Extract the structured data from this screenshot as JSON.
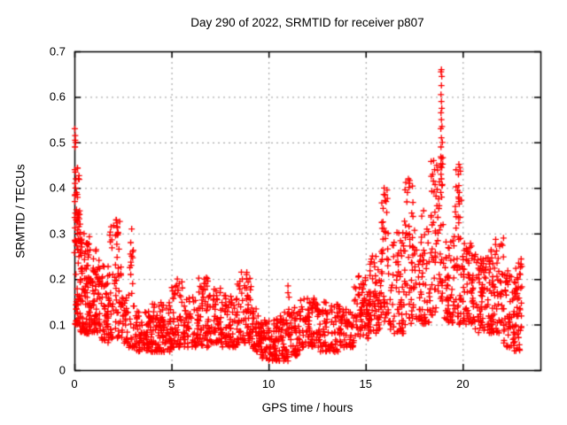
{
  "chart_data": {
    "type": "scatter",
    "title": "Day 290 of 2022, SRMTID for receiver p807",
    "xlabel": "GPS time / hours",
    "ylabel": "SRMTID / TECUs",
    "xlim": [
      0,
      24
    ],
    "ylim": [
      0,
      0.7
    ],
    "xtick_values": [
      0,
      5,
      10,
      15,
      20
    ],
    "xtick_labels": [
      "0",
      "5",
      "10",
      "15",
      "20"
    ],
    "ytick_values": [
      0,
      0.1,
      0.2,
      0.3,
      0.4,
      0.5,
      0.6,
      0.7
    ],
    "ytick_labels": [
      "0",
      "0.1",
      "0.2",
      "0.3",
      "0.4",
      "0.5",
      "0.6",
      "0.7"
    ],
    "grid": true,
    "legend": "none",
    "marker": {
      "shape": "plus",
      "color": "#ff0000",
      "size": 7,
      "stroke": 1.3
    },
    "grid_color": "#9a9a9a",
    "border_color": "#000000",
    "background_color": "#ffffff",
    "seed": 12345,
    "bands": [
      {
        "x0": 0.0,
        "x1": 0.3,
        "n": 55,
        "lo": 0.1,
        "hi": 0.36,
        "pow": 1.3
      },
      {
        "x0": 0.0,
        "x1": 0.25,
        "n": 16,
        "lo": 0.28,
        "hi": 0.45,
        "pow": 1.0
      },
      {
        "x0": 0.3,
        "x1": 0.8,
        "n": 95,
        "lo": 0.08,
        "hi": 0.3,
        "pow": 1.5
      },
      {
        "x0": 0.8,
        "x1": 1.3,
        "n": 70,
        "lo": 0.08,
        "hi": 0.27,
        "pow": 1.5
      },
      {
        "x0": 1.3,
        "x1": 1.8,
        "n": 55,
        "lo": 0.06,
        "hi": 0.23,
        "pow": 1.4
      },
      {
        "x0": 1.8,
        "x1": 2.45,
        "n": 65,
        "lo": 0.07,
        "hi": 0.33,
        "pow": 1.5
      },
      {
        "x0": 2.45,
        "x1": 2.8,
        "n": 30,
        "lo": 0.05,
        "hi": 0.16,
        "pow": 1.3
      },
      {
        "x0": 2.8,
        "x1": 3.1,
        "n": 22,
        "lo": 0.05,
        "hi": 0.28,
        "pow": 2.2
      },
      {
        "x0": 3.1,
        "x1": 4.0,
        "n": 85,
        "lo": 0.04,
        "hi": 0.13,
        "pow": 1.2
      },
      {
        "x0": 4.0,
        "x1": 5.0,
        "n": 95,
        "lo": 0.04,
        "hi": 0.15,
        "pow": 1.3
      },
      {
        "x0": 5.0,
        "x1": 5.6,
        "n": 55,
        "lo": 0.05,
        "hi": 0.2,
        "pow": 1.6
      },
      {
        "x0": 5.6,
        "x1": 6.4,
        "n": 65,
        "lo": 0.05,
        "hi": 0.16,
        "pow": 1.3
      },
      {
        "x0": 6.4,
        "x1": 7.0,
        "n": 60,
        "lo": 0.05,
        "hi": 0.21,
        "pow": 1.5
      },
      {
        "x0": 7.0,
        "x1": 7.6,
        "n": 55,
        "lo": 0.06,
        "hi": 0.18,
        "pow": 1.4
      },
      {
        "x0": 7.6,
        "x1": 8.4,
        "n": 65,
        "lo": 0.05,
        "hi": 0.17,
        "pow": 1.3
      },
      {
        "x0": 8.4,
        "x1": 9.1,
        "n": 65,
        "lo": 0.06,
        "hi": 0.22,
        "pow": 1.5
      },
      {
        "x0": 9.1,
        "x1": 9.6,
        "n": 45,
        "lo": 0.04,
        "hi": 0.14,
        "pow": 1.3
      },
      {
        "x0": 9.6,
        "x1": 10.4,
        "n": 75,
        "lo": 0.02,
        "hi": 0.11,
        "pow": 1.2
      },
      {
        "x0": 10.4,
        "x1": 11.0,
        "n": 60,
        "lo": 0.02,
        "hi": 0.13,
        "pow": 1.4
      },
      {
        "x0": 11.0,
        "x1": 11.6,
        "n": 55,
        "lo": 0.03,
        "hi": 0.14,
        "pow": 1.4
      },
      {
        "x0": 11.6,
        "x1": 12.6,
        "n": 85,
        "lo": 0.05,
        "hi": 0.16,
        "pow": 1.3
      },
      {
        "x0": 12.6,
        "x1": 13.6,
        "n": 75,
        "lo": 0.04,
        "hi": 0.15,
        "pow": 1.4
      },
      {
        "x0": 13.6,
        "x1": 14.4,
        "n": 60,
        "lo": 0.05,
        "hi": 0.14,
        "pow": 1.3
      },
      {
        "x0": 14.4,
        "x1": 15.2,
        "n": 75,
        "lo": 0.07,
        "hi": 0.21,
        "pow": 1.3
      },
      {
        "x0": 15.2,
        "x1": 15.8,
        "n": 60,
        "lo": 0.08,
        "hi": 0.26,
        "pow": 1.4
      },
      {
        "x0": 15.8,
        "x1": 16.2,
        "n": 45,
        "lo": 0.1,
        "hi": 0.4,
        "pow": 1.5
      },
      {
        "x0": 16.2,
        "x1": 17.0,
        "n": 65,
        "lo": 0.08,
        "hi": 0.31,
        "pow": 1.5
      },
      {
        "x0": 17.0,
        "x1": 17.5,
        "n": 50,
        "lo": 0.1,
        "hi": 0.42,
        "pow": 1.5
      },
      {
        "x0": 17.5,
        "x1": 18.3,
        "n": 65,
        "lo": 0.1,
        "hi": 0.35,
        "pow": 1.4
      },
      {
        "x0": 18.3,
        "x1": 18.75,
        "n": 45,
        "lo": 0.12,
        "hi": 0.46,
        "pow": 1.4
      },
      {
        "x0": 18.75,
        "x1": 19.05,
        "n": 28,
        "lo": 0.15,
        "hi": 0.47,
        "pow": 1.2
      },
      {
        "x0": 19.05,
        "x1": 19.6,
        "n": 55,
        "lo": 0.1,
        "hi": 0.3,
        "pow": 1.3
      },
      {
        "x0": 19.6,
        "x1": 19.95,
        "n": 38,
        "lo": 0.1,
        "hi": 0.44,
        "pow": 1.5
      },
      {
        "x0": 19.95,
        "x1": 20.6,
        "n": 65,
        "lo": 0.1,
        "hi": 0.28,
        "pow": 1.3
      },
      {
        "x0": 20.6,
        "x1": 21.4,
        "n": 75,
        "lo": 0.08,
        "hi": 0.26,
        "pow": 1.2
      },
      {
        "x0": 21.4,
        "x1": 22.1,
        "n": 70,
        "lo": 0.08,
        "hi": 0.29,
        "pow": 1.3
      },
      {
        "x0": 22.1,
        "x1": 22.65,
        "n": 55,
        "lo": 0.05,
        "hi": 0.22,
        "pow": 1.2
      },
      {
        "x0": 22.65,
        "x1": 23.05,
        "n": 50,
        "lo": 0.04,
        "hi": 0.25,
        "pow": 1.2
      }
    ],
    "feature_points": [
      [
        0.02,
        0.53
      ],
      [
        0.04,
        0.515
      ],
      [
        0.04,
        0.505
      ],
      [
        0.06,
        0.5
      ],
      [
        0.03,
        0.49
      ],
      [
        0.02,
        0.44
      ],
      [
        0.05,
        0.435
      ],
      [
        0.08,
        0.42
      ],
      [
        0.03,
        0.41
      ],
      [
        0.06,
        0.4
      ],
      [
        0.04,
        0.385
      ],
      [
        0.02,
        0.37
      ],
      [
        0.05,
        0.345
      ],
      [
        0.09,
        0.33
      ],
      [
        2.15,
        0.33
      ],
      [
        2.2,
        0.315
      ],
      [
        2.25,
        0.3
      ],
      [
        2.95,
        0.31
      ],
      [
        2.9,
        0.28
      ],
      [
        3.0,
        0.26
      ],
      [
        2.95,
        0.25
      ],
      [
        2.9,
        0.21
      ],
      [
        3.0,
        0.19
      ],
      [
        5.3,
        0.2
      ],
      [
        5.4,
        0.19
      ],
      [
        6.7,
        0.2
      ],
      [
        6.75,
        0.19
      ],
      [
        8.6,
        0.215
      ],
      [
        8.65,
        0.2
      ],
      [
        11.0,
        0.185
      ],
      [
        11.0,
        0.17
      ],
      [
        11.05,
        0.16
      ],
      [
        15.95,
        0.4
      ],
      [
        16.0,
        0.385
      ],
      [
        16.05,
        0.37
      ],
      [
        15.9,
        0.355
      ],
      [
        17.2,
        0.42
      ],
      [
        17.25,
        0.41
      ],
      [
        17.15,
        0.39
      ],
      [
        18.5,
        0.46
      ],
      [
        18.55,
        0.44
      ],
      [
        18.45,
        0.43
      ],
      [
        18.9,
        0.66
      ],
      [
        18.88,
        0.655
      ],
      [
        18.92,
        0.645
      ],
      [
        18.9,
        0.625
      ],
      [
        18.88,
        0.605
      ],
      [
        18.9,
        0.59
      ],
      [
        18.92,
        0.575
      ],
      [
        18.88,
        0.565
      ],
      [
        18.9,
        0.55
      ],
      [
        18.93,
        0.535
      ],
      [
        18.87,
        0.53
      ],
      [
        18.9,
        0.51
      ],
      [
        18.95,
        0.5
      ],
      [
        18.88,
        0.49
      ],
      [
        18.9,
        0.465
      ],
      [
        18.92,
        0.445
      ],
      [
        18.88,
        0.43
      ],
      [
        18.9,
        0.42
      ],
      [
        18.93,
        0.405
      ],
      [
        18.87,
        0.39
      ],
      [
        19.8,
        0.452
      ],
      [
        19.85,
        0.445
      ],
      [
        19.8,
        0.405
      ],
      [
        19.82,
        0.39
      ],
      [
        19.78,
        0.38
      ],
      [
        19.8,
        0.37
      ],
      [
        19.85,
        0.335
      ],
      [
        22.1,
        0.29
      ]
    ]
  }
}
